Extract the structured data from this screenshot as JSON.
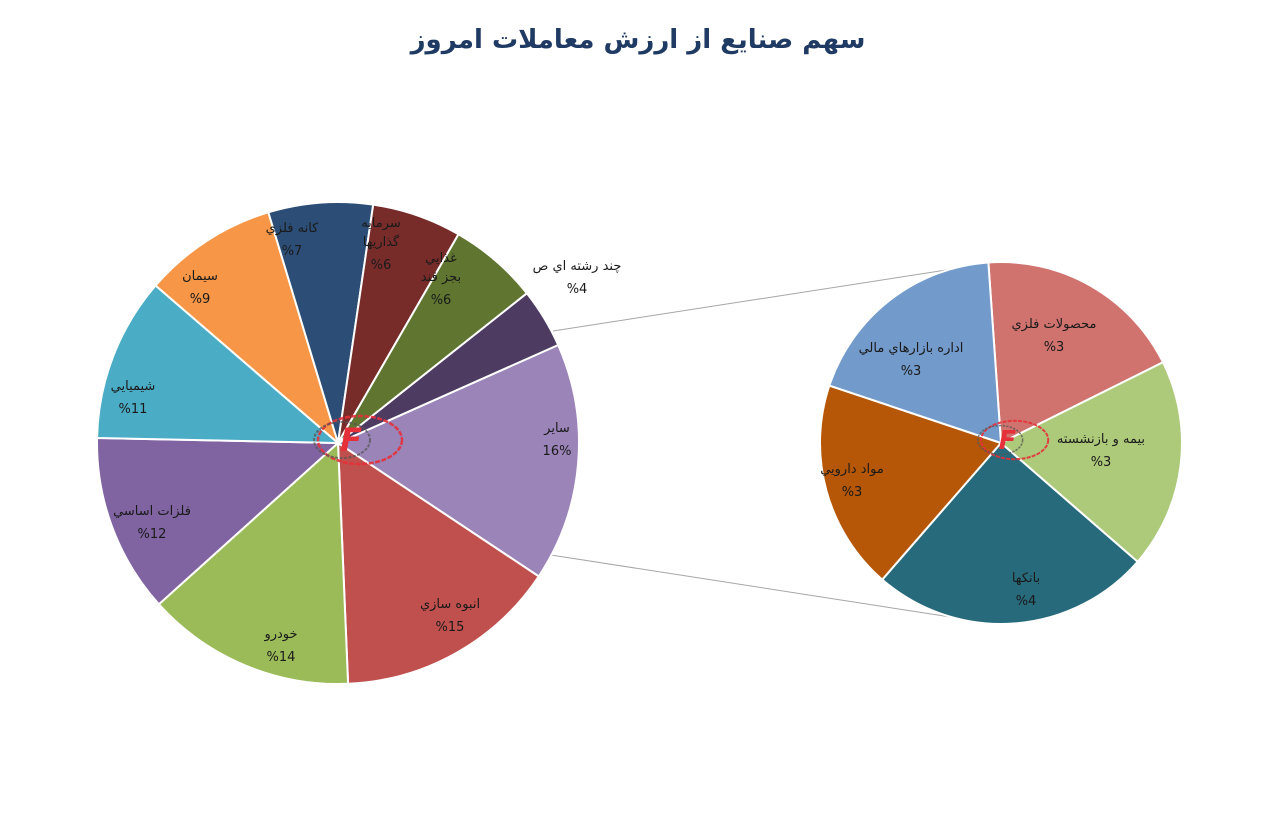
{
  "chart_data": [
    {
      "type": "pie",
      "title": "سهم صنايع از ارزش معاملات امروز",
      "slices": [
        {
          "label": "ساير",
          "value": 16,
          "display": "16%",
          "color": "#9b84b8"
        },
        {
          "label": "انبوه سازي",
          "value": 15,
          "display": "%15",
          "color": "#c0504d"
        },
        {
          "label": "خودرو",
          "value": 14,
          "display": "%14",
          "color": "#9bbb59"
        },
        {
          "label": "فلزات اساسي",
          "value": 12,
          "display": "%12",
          "color": "#8064a2"
        },
        {
          "label": "شيميايي",
          "value": 11,
          "display": "%11",
          "color": "#4bacc6"
        },
        {
          "label": "سيمان",
          "value": 9,
          "display": "%9",
          "color": "#f79646"
        },
        {
          "label": "كانه فلزي",
          "value": 7,
          "display": "%7",
          "color": "#2c4d75"
        },
        {
          "label": "سرمايه گذاريها",
          "value": 6,
          "display": "%6",
          "color": "#772c2a"
        },
        {
          "label": "غذايي بجز قند",
          "value": 6,
          "display": "%6",
          "color": "#5f7530"
        },
        {
          "label": "چند رشته اي ص",
          "value": 4,
          "display": "%4",
          "color": "#4d3b62"
        }
      ]
    },
    {
      "type": "pie",
      "title": "",
      "slices": [
        {
          "label": "محصولات فلزي",
          "value": 3,
          "display": "%3",
          "color": "#d0736f"
        },
        {
          "label": "بيمه و بازنشسته",
          "value": 3,
          "display": "%3",
          "color": "#adc97a"
        },
        {
          "label": "بانكها",
          "value": 4,
          "display": "%4",
          "color": "#276a7c"
        },
        {
          "label": "مواد دارويي",
          "value": 3,
          "display": "%3",
          "color": "#b65708"
        },
        {
          "label": "اداره بازارهاي مالي",
          "value": 3,
          "display": "%3",
          "color": "#729aca"
        }
      ]
    }
  ],
  "logo": {
    "letter": "F",
    "ring_color": "#e5303a",
    "ring_dark": "#555555"
  }
}
